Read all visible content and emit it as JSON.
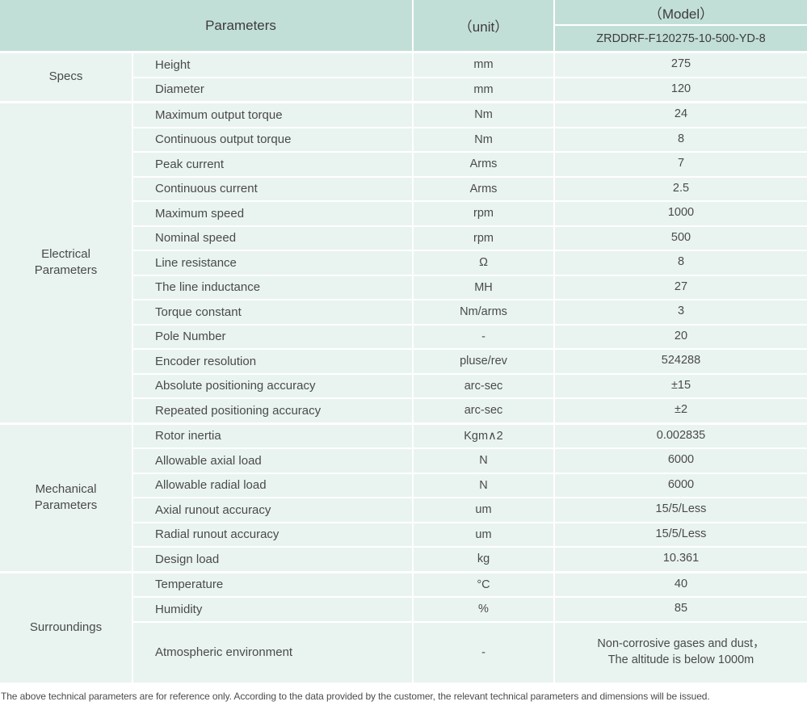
{
  "colors": {
    "header_bg": "#c2dfd7",
    "row_bg": "#e9f4f1",
    "text": "#4a4a4a"
  },
  "header": {
    "parameters_label": "Parameters",
    "unit_label": "（unit）",
    "model_label": "（Model）",
    "model_value": "ZRDDRF-F120275-10-500-YD-8"
  },
  "groups": [
    {
      "label": "Specs",
      "rows": [
        {
          "param": "Height",
          "unit": "mm",
          "value": "275"
        },
        {
          "param": "Diameter",
          "unit": "mm",
          "value": "120"
        }
      ]
    },
    {
      "label": "Electrical\nParameters",
      "rows": [
        {
          "param": "Maximum output torque",
          "unit": "Nm",
          "value": "24"
        },
        {
          "param": "Continuous output torque",
          "unit": "Nm",
          "value": "8"
        },
        {
          "param": "Peak current",
          "unit": "Arms",
          "value": "7"
        },
        {
          "param": "Continuous current",
          "unit": "Arms",
          "value": "2.5"
        },
        {
          "param": "Maximum speed",
          "unit": "rpm",
          "value": "1000"
        },
        {
          "param": "Nominal speed",
          "unit": "rpm",
          "value": "500"
        },
        {
          "param": "Line resistance",
          "unit": "Ω",
          "value": "8"
        },
        {
          "param": "The line inductance",
          "unit": "MH",
          "value": "27"
        },
        {
          "param": "Torque constant",
          "unit": "Nm/arms",
          "value": "3"
        },
        {
          "param": "Pole Number",
          "unit": "-",
          "value": "20"
        },
        {
          "param": "Encoder resolution",
          "unit": "pluse/rev",
          "value": "524288"
        },
        {
          "param": "Absolute positioning accuracy",
          "unit": "arc-sec",
          "value": "±15"
        },
        {
          "param": "Repeated positioning accuracy",
          "unit": "arc-sec",
          "value": "±2"
        }
      ]
    },
    {
      "label": "Mechanical\nParameters",
      "rows": [
        {
          "param": "Rotor inertia",
          "unit": "Kgm∧2",
          "value": "0.002835"
        },
        {
          "param": "Allowable axial load",
          "unit": "N",
          "value": "6000"
        },
        {
          "param": "Allowable radial load",
          "unit": "N",
          "value": "6000"
        },
        {
          "param": "Axial runout accuracy",
          "unit": "um",
          "value": "15/5/Less"
        },
        {
          "param": "Radial runout accuracy",
          "unit": "um",
          "value": "15/5/Less"
        },
        {
          "param": "Design load",
          "unit": "kg",
          "value": "10.361"
        }
      ]
    },
    {
      "label": "Surroundings",
      "rows": [
        {
          "param": "Temperature",
          "unit": "°C",
          "value": "40"
        },
        {
          "param": "Humidity",
          "unit": "%",
          "value": "85"
        },
        {
          "param": "Atmospheric environment",
          "unit": "-",
          "value": "Non-corrosive gases and dust，\nThe altitude is below 1000m"
        }
      ]
    }
  ],
  "footnote": "The above technical parameters are for reference only. According to the data provided by the customer, the relevant technical parameters and dimensions will be issued."
}
